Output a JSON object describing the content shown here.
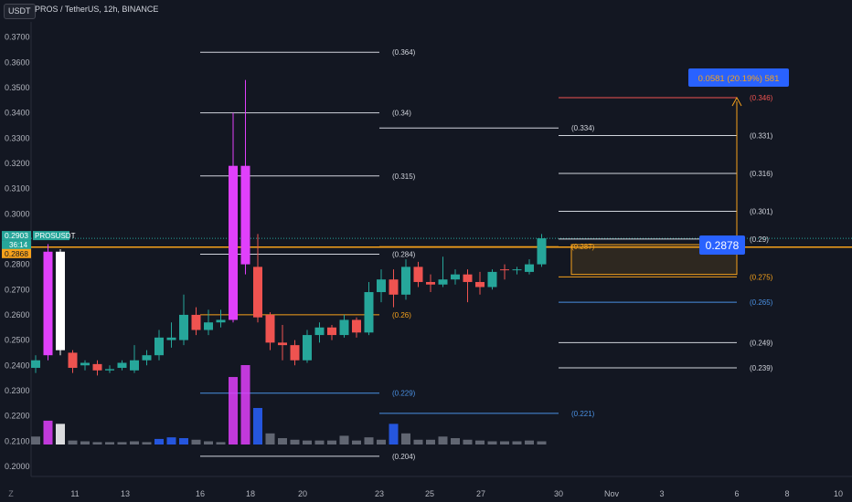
{
  "header": {
    "currency_button": "USDT",
    "symbol_line": "PROS / TetherUS, 12h, BINANCE"
  },
  "price_axis": {
    "ticks": [
      "0.3700",
      "0.3600",
      "0.3500",
      "0.3400",
      "0.3300",
      "0.3200",
      "0.3100",
      "0.3000",
      "0.2900",
      "0.2800",
      "0.2700",
      "0.2600",
      "0.2500",
      "0.2400",
      "0.2300",
      "0.2200",
      "0.2100",
      "0.2000"
    ],
    "ticks_values": [
      0.37,
      0.36,
      0.35,
      0.34,
      0.33,
      0.32,
      0.31,
      0.3,
      0.29,
      0.28,
      0.27,
      0.26,
      0.25,
      0.24,
      0.23,
      0.22,
      0.21,
      0.2
    ],
    "last_price": "0.2903",
    "countdown": "36:14",
    "symbol_tag": "PROSUSDT",
    "orange_level": "0.2868",
    "colors": {
      "last": "#26a69a",
      "orange": "#f7a21b"
    }
  },
  "time_axis": {
    "labels": [
      "11",
      "13",
      "16",
      "18",
      "20",
      "23",
      "25",
      "27",
      "30",
      "Nov",
      "3",
      "6",
      "8",
      "10"
    ],
    "z_icon": "Z"
  },
  "chart_data": {
    "type": "candlestick",
    "title": "PROS / TetherUS, 12h, BINANCE",
    "ylim": [
      0.196,
      0.376
    ],
    "candles": [
      {
        "o": 0.239,
        "h": 0.244,
        "l": 0.237,
        "c": 0.242,
        "color": "#26a69a"
      },
      {
        "o": 0.244,
        "h": 0.288,
        "l": 0.242,
        "c": 0.285,
        "color": "#e040fb"
      },
      {
        "o": 0.285,
        "h": 0.286,
        "l": 0.244,
        "c": 0.246,
        "color": "#ffffff"
      },
      {
        "o": 0.245,
        "h": 0.246,
        "l": 0.237,
        "c": 0.239,
        "color": "#ef5350"
      },
      {
        "o": 0.241,
        "h": 0.242,
        "l": 0.238,
        "c": 0.24,
        "color": "#26a69a"
      },
      {
        "o": 0.2405,
        "h": 0.242,
        "l": 0.236,
        "c": 0.238,
        "color": "#ef5350"
      },
      {
        "o": 0.238,
        "h": 0.24,
        "l": 0.237,
        "c": 0.2385,
        "color": "#26a69a"
      },
      {
        "o": 0.239,
        "h": 0.242,
        "l": 0.238,
        "c": 0.241,
        "color": "#26a69a"
      },
      {
        "o": 0.238,
        "h": 0.248,
        "l": 0.237,
        "c": 0.242,
        "color": "#26a69a"
      },
      {
        "o": 0.242,
        "h": 0.246,
        "l": 0.24,
        "c": 0.244,
        "color": "#26a69a"
      },
      {
        "o": 0.244,
        "h": 0.254,
        "l": 0.242,
        "c": 0.251,
        "color": "#26a69a"
      },
      {
        "o": 0.251,
        "h": 0.257,
        "l": 0.247,
        "c": 0.25,
        "color": "#26a69a"
      },
      {
        "o": 0.25,
        "h": 0.268,
        "l": 0.248,
        "c": 0.26,
        "color": "#26a69a"
      },
      {
        "o": 0.26,
        "h": 0.263,
        "l": 0.252,
        "c": 0.254,
        "color": "#ef5350"
      },
      {
        "o": 0.254,
        "h": 0.262,
        "l": 0.252,
        "c": 0.257,
        "color": "#26a69a"
      },
      {
        "o": 0.257,
        "h": 0.262,
        "l": 0.255,
        "c": 0.258,
        "color": "#26a69a"
      },
      {
        "o": 0.258,
        "h": 0.34,
        "l": 0.257,
        "c": 0.319,
        "color": "#e040fb"
      },
      {
        "o": 0.319,
        "h": 0.353,
        "l": 0.276,
        "c": 0.28,
        "color": "#e040fb"
      },
      {
        "o": 0.279,
        "h": 0.292,
        "l": 0.257,
        "c": 0.259,
        "color": "#ef5350"
      },
      {
        "o": 0.26,
        "h": 0.261,
        "l": 0.246,
        "c": 0.249,
        "color": "#ef5350"
      },
      {
        "o": 0.249,
        "h": 0.256,
        "l": 0.242,
        "c": 0.248,
        "color": "#ef5350"
      },
      {
        "o": 0.248,
        "h": 0.25,
        "l": 0.24,
        "c": 0.242,
        "color": "#ef5350"
      },
      {
        "o": 0.242,
        "h": 0.254,
        "l": 0.241,
        "c": 0.252,
        "color": "#26a69a"
      },
      {
        "o": 0.252,
        "h": 0.257,
        "l": 0.249,
        "c": 0.255,
        "color": "#26a69a"
      },
      {
        "o": 0.255,
        "h": 0.256,
        "l": 0.25,
        "c": 0.252,
        "color": "#ef5350"
      },
      {
        "o": 0.252,
        "h": 0.26,
        "l": 0.251,
        "c": 0.258,
        "color": "#26a69a"
      },
      {
        "o": 0.258,
        "h": 0.259,
        "l": 0.251,
        "c": 0.253,
        "color": "#ef5350"
      },
      {
        "o": 0.253,
        "h": 0.273,
        "l": 0.252,
        "c": 0.269,
        "color": "#26a69a"
      },
      {
        "o": 0.269,
        "h": 0.278,
        "l": 0.265,
        "c": 0.274,
        "color": "#26a69a"
      },
      {
        "o": 0.274,
        "h": 0.278,
        "l": 0.263,
        "c": 0.268,
        "color": "#ef5350"
      },
      {
        "o": 0.268,
        "h": 0.282,
        "l": 0.266,
        "c": 0.279,
        "color": "#26a69a"
      },
      {
        "o": 0.279,
        "h": 0.281,
        "l": 0.271,
        "c": 0.273,
        "color": "#ef5350"
      },
      {
        "o": 0.273,
        "h": 0.276,
        "l": 0.269,
        "c": 0.272,
        "color": "#ef5350"
      },
      {
        "o": 0.272,
        "h": 0.283,
        "l": 0.271,
        "c": 0.274,
        "color": "#26a69a"
      },
      {
        "o": 0.274,
        "h": 0.278,
        "l": 0.272,
        "c": 0.276,
        "color": "#26a69a"
      },
      {
        "o": 0.276,
        "h": 0.278,
        "l": 0.265,
        "c": 0.273,
        "color": "#ef5350"
      },
      {
        "o": 0.273,
        "h": 0.277,
        "l": 0.268,
        "c": 0.271,
        "color": "#ef5350"
      },
      {
        "o": 0.271,
        "h": 0.278,
        "l": 0.27,
        "c": 0.277,
        "color": "#26a69a"
      },
      {
        "o": 0.278,
        "h": 0.28,
        "l": 0.274,
        "c": 0.278,
        "color": "#ef5350"
      },
      {
        "o": 0.278,
        "h": 0.279,
        "l": 0.276,
        "c": 0.278,
        "color": "#26a69a"
      },
      {
        "o": 0.277,
        "h": 0.282,
        "l": 0.276,
        "c": 0.28,
        "color": "#26a69a"
      },
      {
        "o": 0.28,
        "h": 0.292,
        "l": 0.279,
        "c": 0.2903,
        "color": "#26a69a"
      }
    ],
    "volumes": [
      {
        "v": 0.1,
        "color": "#707480"
      },
      {
        "v": 0.3,
        "color": "#e040fb"
      },
      {
        "v": 0.26,
        "color": "#ffffff"
      },
      {
        "v": 0.05,
        "color": "#707480"
      },
      {
        "v": 0.04,
        "color": "#707480"
      },
      {
        "v": 0.03,
        "color": "#707480"
      },
      {
        "v": 0.03,
        "color": "#707480"
      },
      {
        "v": 0.03,
        "color": "#707480"
      },
      {
        "v": 0.04,
        "color": "#707480"
      },
      {
        "v": 0.03,
        "color": "#707480"
      },
      {
        "v": 0.07,
        "color": "#2962ff"
      },
      {
        "v": 0.09,
        "color": "#2962ff"
      },
      {
        "v": 0.08,
        "color": "#2962ff"
      },
      {
        "v": 0.06,
        "color": "#707480"
      },
      {
        "v": 0.04,
        "color": "#707480"
      },
      {
        "v": 0.03,
        "color": "#707480"
      },
      {
        "v": 0.85,
        "color": "#e040fb"
      },
      {
        "v": 1.0,
        "color": "#e040fb"
      },
      {
        "v": 0.46,
        "color": "#2962ff"
      },
      {
        "v": 0.14,
        "color": "#707480"
      },
      {
        "v": 0.08,
        "color": "#707480"
      },
      {
        "v": 0.06,
        "color": "#707480"
      },
      {
        "v": 0.05,
        "color": "#707480"
      },
      {
        "v": 0.05,
        "color": "#707480"
      },
      {
        "v": 0.05,
        "color": "#707480"
      },
      {
        "v": 0.11,
        "color": "#707480"
      },
      {
        "v": 0.05,
        "color": "#707480"
      },
      {
        "v": 0.09,
        "color": "#707480"
      },
      {
        "v": 0.06,
        "color": "#707480"
      },
      {
        "v": 0.26,
        "color": "#2962ff"
      },
      {
        "v": 0.14,
        "color": "#707480"
      },
      {
        "v": 0.06,
        "color": "#707480"
      },
      {
        "v": 0.06,
        "color": "#707480"
      },
      {
        "v": 0.1,
        "color": "#707480"
      },
      {
        "v": 0.08,
        "color": "#707480"
      },
      {
        "v": 0.06,
        "color": "#707480"
      },
      {
        "v": 0.05,
        "color": "#707480"
      },
      {
        "v": 0.04,
        "color": "#707480"
      },
      {
        "v": 0.04,
        "color": "#707480"
      },
      {
        "v": 0.04,
        "color": "#707480"
      },
      {
        "v": 0.05,
        "color": "#707480"
      },
      {
        "v": 0.04,
        "color": "#707480"
      }
    ],
    "levels_left": [
      {
        "label": "(0.364)",
        "value": 0.364,
        "color": "#d1d4dc"
      },
      {
        "label": "(0.34)",
        "value": 0.34,
        "color": "#d1d4dc"
      },
      {
        "label": "(0.315)",
        "value": 0.315,
        "color": "#d1d4dc"
      },
      {
        "label": "(0.284)",
        "value": 0.284,
        "color": "#d1d4dc"
      },
      {
        "label": "(0.26)",
        "value": 0.26,
        "color": "#f7a21b"
      },
      {
        "label": "(0.229)",
        "value": 0.229,
        "color": "#4a90e2"
      },
      {
        "label": "(0.204)",
        "value": 0.204,
        "color": "#d1d4dc"
      }
    ],
    "levels_mid": [
      {
        "label": "(0.334)",
        "value": 0.334,
        "color": "#d1d4dc"
      },
      {
        "label": "(0.287)",
        "value": 0.287,
        "color": "#f7a21b"
      },
      {
        "label": "(0.221)",
        "value": 0.221,
        "color": "#4a90e2"
      }
    ],
    "levels_right": [
      {
        "label": "(0.346)",
        "value": 0.346,
        "color": "#ef5350"
      },
      {
        "label": "(0.331)",
        "value": 0.331,
        "color": "#d1d4dc"
      },
      {
        "label": "(0.316)",
        "value": 0.316,
        "color": "#d1d4dc"
      },
      {
        "label": "(0.301)",
        "value": 0.301,
        "color": "#d1d4dc"
      },
      {
        "label": "(0.29)",
        "value": 0.29,
        "color": "#d1d4dc"
      },
      {
        "label": "(0.275)",
        "value": 0.275,
        "color": "#f7a21b"
      },
      {
        "label": "(0.265)",
        "value": 0.265,
        "color": "#4a90e2"
      },
      {
        "label": "(0.249)",
        "value": 0.249,
        "color": "#d1d4dc"
      },
      {
        "label": "(0.239)",
        "value": 0.239,
        "color": "#d1d4dc"
      }
    ],
    "projection": {
      "label": "0.0581 (20.19%) 581",
      "from": 0.2878,
      "to": 0.346,
      "box_top": 0.2878,
      "box_bottom": 0.276,
      "price_badge": "0.2878"
    }
  }
}
